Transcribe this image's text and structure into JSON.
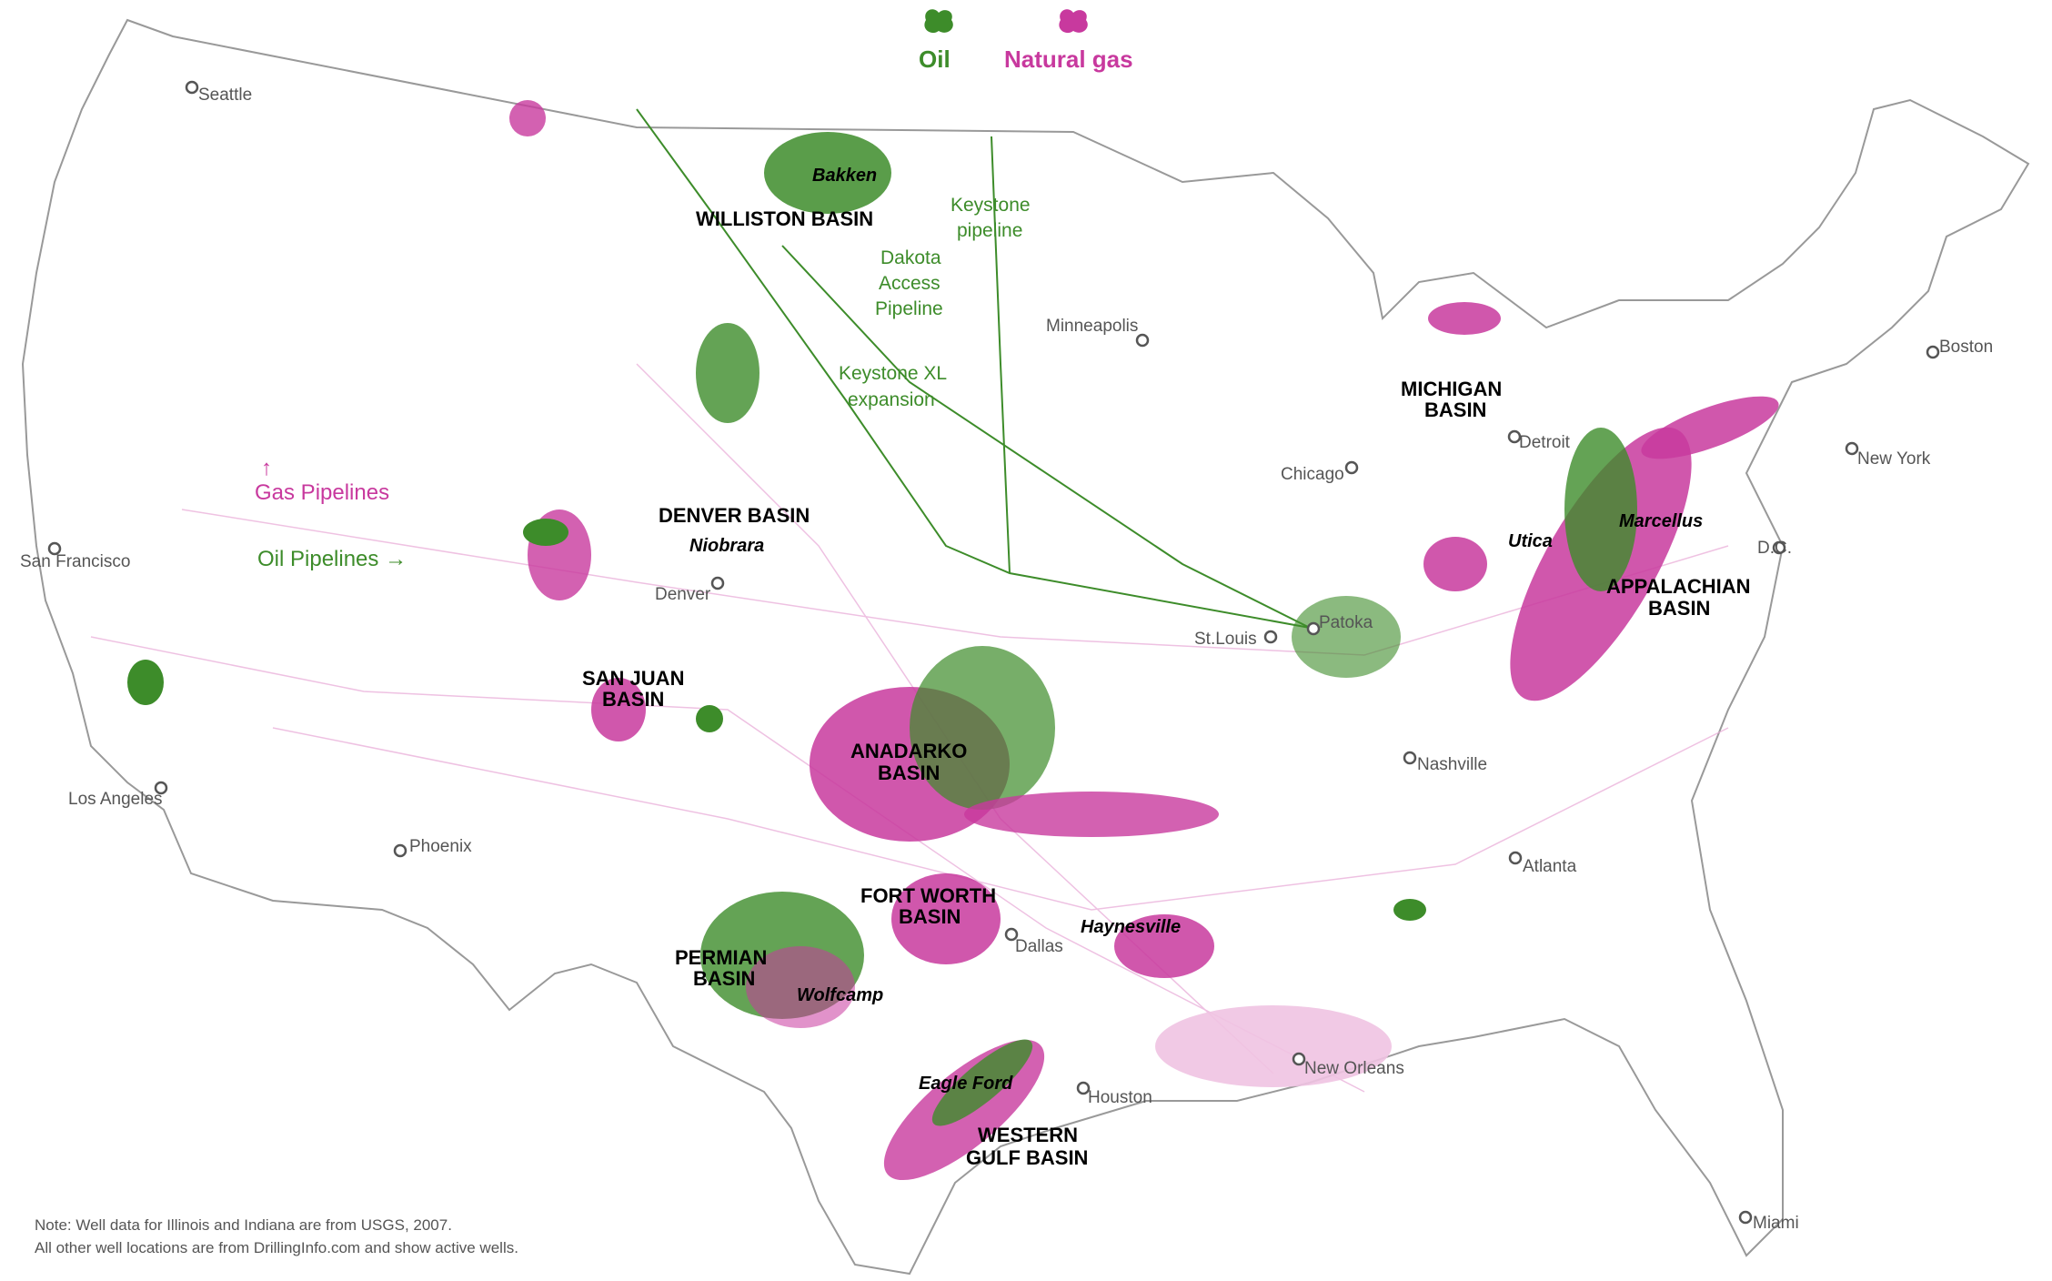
{
  "legend": {
    "oil_label": "Oil",
    "gas_label": "Natural gas",
    "oil_color": "#3d8c2a",
    "gas_color": "#c8399e"
  },
  "annotations": {
    "gas_pipelines": "↑\nGas Pipelines",
    "gas_arrow": "↑",
    "gas_text": "Gas Pipelines",
    "oil_pipelines": "Oil Pipelines →"
  },
  "pipelines": {
    "keystone": [
      "Keystone",
      "pipeline"
    ],
    "dakota": [
      "Dakota",
      "Access",
      "Pipeline"
    ],
    "keystone_xl": [
      "Keystone XL",
      "expansion"
    ]
  },
  "cities": {
    "seattle": "Seattle",
    "san_francisco": "San Francisco",
    "los_angeles": "Los Angeles",
    "phoenix": "Phoenix",
    "denver": "Denver",
    "minneapolis": "Minneapolis",
    "chicago": "Chicago",
    "detroit": "Detroit",
    "st_louis": "St.Louis",
    "patoka": "Patoka",
    "nashville": "Nashville",
    "atlanta": "Atlanta",
    "dallas": "Dallas",
    "houston": "Houston",
    "new_orleans": "New Orleans",
    "miami": "Miami",
    "boston": "Boston",
    "new_york": "New York",
    "dc": "D.C."
  },
  "basins": {
    "williston": "WILLISTON BASIN",
    "denver": "DENVER BASIN",
    "san_juan": [
      "SAN JUAN",
      "BASIN"
    ],
    "anadarko": [
      "ANADARKO",
      "BASIN"
    ],
    "fort_worth": [
      "FORT WORTH",
      "BASIN"
    ],
    "permian": [
      "PERMIAN",
      "BASIN"
    ],
    "western_gulf": [
      "WESTERN",
      "GULF BASIN"
    ],
    "michigan": [
      "MICHIGAN",
      "BASIN"
    ],
    "appalachian": [
      "APPALACHIAN",
      "BASIN"
    ]
  },
  "plays": {
    "bakken": "Bakken",
    "niobrara": "Niobrara",
    "wolfcamp": "Wolfcamp",
    "haynesville": "Haynesville",
    "eagle_ford": "Eagle Ford",
    "utica": "Utica",
    "marcellus": "Marcellus"
  },
  "note": [
    "Note: Well data for Illinois and Indiana are from USGS, 2007.",
    "All other well locations are from DrillingInfo.com and show active wells."
  ]
}
